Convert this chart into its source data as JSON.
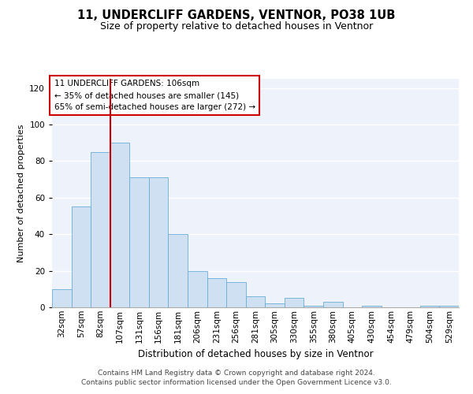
{
  "title": "11, UNDERCLIFF GARDENS, VENTNOR, PO38 1UB",
  "subtitle": "Size of property relative to detached houses in Ventnor",
  "xlabel": "Distribution of detached houses by size in Ventnor",
  "ylabel": "Number of detached properties",
  "categories": [
    "32sqm",
    "57sqm",
    "82sqm",
    "107sqm",
    "131sqm",
    "156sqm",
    "181sqm",
    "206sqm",
    "231sqm",
    "256sqm",
    "281sqm",
    "305sqm",
    "330sqm",
    "355sqm",
    "380sqm",
    "405sqm",
    "430sqm",
    "454sqm",
    "479sqm",
    "504sqm",
    "529sqm"
  ],
  "values": [
    10,
    55,
    85,
    90,
    71,
    71,
    40,
    20,
    16,
    14,
    6,
    2,
    5,
    1,
    3,
    0,
    1,
    0,
    0,
    1,
    1
  ],
  "bar_color": "#cfe0f3",
  "bar_edge_color": "#6aaed6",
  "vline_x_index": 3,
  "vline_color": "#cc0000",
  "annotation_text": "11 UNDERCLIFF GARDENS: 106sqm\n← 35% of detached houses are smaller (145)\n65% of semi-detached houses are larger (272) →",
  "annotation_box_color": "white",
  "annotation_box_edge_color": "#cc0000",
  "ylim": [
    0,
    125
  ],
  "yticks": [
    0,
    20,
    40,
    60,
    80,
    100,
    120
  ],
  "bg_color": "#eef2fb",
  "footer_text": "Contains HM Land Registry data © Crown copyright and database right 2024.\nContains public sector information licensed under the Open Government Licence v3.0.",
  "title_fontsize": 10.5,
  "subtitle_fontsize": 9,
  "xlabel_fontsize": 8.5,
  "ylabel_fontsize": 8,
  "tick_fontsize": 7.5,
  "annotation_fontsize": 7.5,
  "footer_fontsize": 6.5
}
